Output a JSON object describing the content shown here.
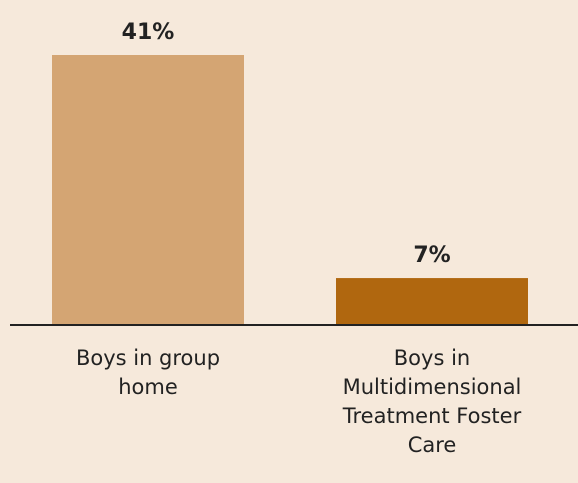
{
  "chart_data": {
    "type": "bar",
    "categories": [
      "Boys in group home",
      "Boys in Multidimensional Treatment Foster Care"
    ],
    "values": [
      41,
      7
    ],
    "value_labels": [
      "41%",
      "7%"
    ],
    "colors": [
      "#d4a573",
      "#b0670f"
    ]
  }
}
